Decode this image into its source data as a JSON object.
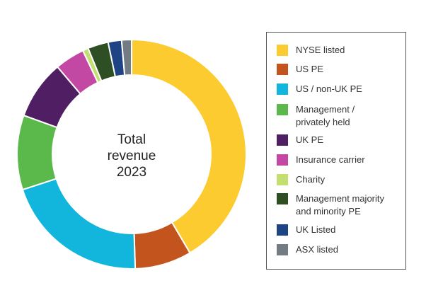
{
  "chart_data": {
    "type": "pie",
    "center_label": [
      "Total",
      "revenue",
      "2023"
    ],
    "slices": [
      {
        "label": "NYSE listed",
        "value": 41.5,
        "color": "#fccb2f",
        "legend_lines": [
          "NYSE listed"
        ]
      },
      {
        "label": "US PE",
        "value": 8.0,
        "color": "#c4541e",
        "legend_lines": [
          "US PE"
        ]
      },
      {
        "label": "US / non-UK PE",
        "value": 20.5,
        "color": "#12b5dc",
        "legend_lines": [
          "US / non-UK PE"
        ]
      },
      {
        "label": "Management / privately held",
        "value": 10.5,
        "color": "#5bb94b",
        "legend_lines": [
          "Management /",
          "privately held"
        ]
      },
      {
        "label": "UK PE",
        "value": 8.3,
        "color": "#4f1e63",
        "legend_lines": [
          "UK PE"
        ]
      },
      {
        "label": "Insurance carrier",
        "value": 4.2,
        "color": "#c248a4",
        "legend_lines": [
          "Insurance carrier"
        ]
      },
      {
        "label": "Charity",
        "value": 0.8,
        "color": "#c4de72",
        "legend_lines": [
          "Charity"
        ]
      },
      {
        "label": "Management majority and minority PE",
        "value": 2.9,
        "color": "#2e4f23",
        "legend_lines": [
          "Management majority",
          "and minority PE"
        ]
      },
      {
        "label": "UK Listed",
        "value": 1.9,
        "color": "#1e4485",
        "legend_lines": [
          "UK Listed"
        ]
      },
      {
        "label": "ASX listed",
        "value": 1.4,
        "color": "#737b85",
        "legend_lines": [
          "ASX listed"
        ]
      }
    ]
  }
}
